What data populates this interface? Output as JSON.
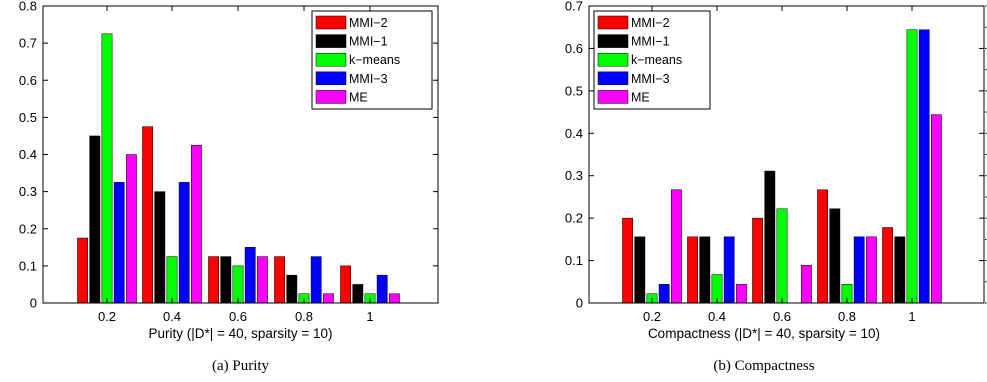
{
  "series_colors": [
    "#ff0000",
    "#000000",
    "#00ff00",
    "#0000ff",
    "#ff00ff"
  ],
  "chart_data": [
    {
      "type": "bar",
      "caption": "(a) Purity",
      "xlabel": "Purity (|D*| = 40, sparsity = 10)",
      "ylabel": "",
      "categories": [
        "0.2",
        "0.4",
        "0.6",
        "0.8",
        "1"
      ],
      "ylim": [
        0,
        0.8
      ],
      "yticks": [
        "0",
        "0.1",
        "0.2",
        "0.3",
        "0.4",
        "0.5",
        "0.6",
        "0.7",
        "0.8"
      ],
      "legend_position": "top-right",
      "grid": false,
      "series": [
        {
          "name": "MMI−2",
          "values": [
            0.175,
            0.475,
            0.125,
            0.125,
            0.1
          ]
        },
        {
          "name": "MMI−1",
          "values": [
            0.45,
            0.3,
            0.125,
            0.075,
            0.05
          ]
        },
        {
          "name": "k−means",
          "values": [
            0.725,
            0.125,
            0.1,
            0.025,
            0.025
          ]
        },
        {
          "name": "MMI−3",
          "values": [
            0.325,
            0.325,
            0.15,
            0.125,
            0.075
          ]
        },
        {
          "name": "ME",
          "values": [
            0.4,
            0.425,
            0.125,
            0.025,
            0.025
          ]
        }
      ]
    },
    {
      "type": "bar",
      "caption": "(b) Compactness",
      "xlabel": "Compactness (|D*| = 40, sparsity = 10)",
      "ylabel": "",
      "categories": [
        "0.2",
        "0.4",
        "0.6",
        "0.8",
        "1"
      ],
      "ylim": [
        0,
        0.7
      ],
      "yticks": [
        "0",
        "0.1",
        "0.2",
        "0.3",
        "0.4",
        "0.5",
        "0.6",
        "0.7"
      ],
      "legend_position": "top-left",
      "grid": false,
      "series": [
        {
          "name": "MMI−2",
          "values": [
            0.2,
            0.156,
            0.2,
            0.267,
            0.178
          ]
        },
        {
          "name": "MMI−1",
          "values": [
            0.156,
            0.156,
            0.311,
            0.222,
            0.156
          ]
        },
        {
          "name": "k−means",
          "values": [
            0.022,
            0.067,
            0.222,
            0.044,
            0.644
          ]
        },
        {
          "name": "MMI−3",
          "values": [
            0.044,
            0.156,
            0.0,
            0.156,
            0.644
          ]
        },
        {
          "name": "ME",
          "values": [
            0.267,
            0.044,
            0.089,
            0.156,
            0.444
          ]
        }
      ]
    }
  ]
}
